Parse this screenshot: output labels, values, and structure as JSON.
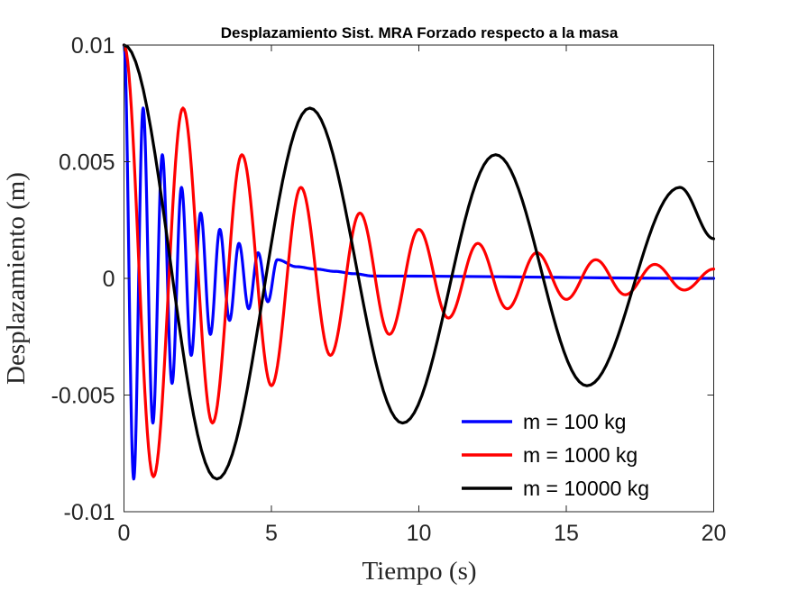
{
  "chart_data": {
    "type": "line",
    "title": "Desplazamiento Sist. MRA Forzado respecto a la masa",
    "xlabel": "Tiempo (s)",
    "ylabel": "Desplazamiento (m)",
    "xlim": [
      0,
      20
    ],
    "ylim": [
      -0.01,
      0.01
    ],
    "xticks": [
      0,
      5,
      10,
      15,
      20
    ],
    "xtick_labels": [
      "0",
      "5",
      "10",
      "15",
      "20"
    ],
    "yticks": [
      -0.01,
      -0.005,
      0,
      0.005,
      0.01
    ],
    "ytick_labels": [
      "-0.01",
      "-0.005",
      "0",
      "0.005",
      "0.01"
    ],
    "grid": false,
    "legend_position": "bottom-right",
    "series": [
      {
        "name": "m = 100 kg",
        "color": "#0000ff",
        "peaks": [
          {
            "x": 0.0,
            "y": 0.01
          },
          {
            "x": 0.33,
            "y": -0.0086
          },
          {
            "x": 0.65,
            "y": 0.0073
          },
          {
            "x": 0.98,
            "y": -0.0062
          },
          {
            "x": 1.3,
            "y": 0.0053
          },
          {
            "x": 1.63,
            "y": -0.0045
          },
          {
            "x": 1.95,
            "y": 0.0039
          },
          {
            "x": 2.28,
            "y": -0.0033
          },
          {
            "x": 2.6,
            "y": 0.0028
          },
          {
            "x": 2.93,
            "y": -0.0024
          },
          {
            "x": 3.25,
            "y": 0.0021
          },
          {
            "x": 3.58,
            "y": -0.0018
          },
          {
            "x": 3.9,
            "y": 0.0015
          },
          {
            "x": 4.23,
            "y": -0.0013
          },
          {
            "x": 4.55,
            "y": 0.0011
          },
          {
            "x": 4.88,
            "y": -0.001
          },
          {
            "x": 5.2,
            "y": 0.0008
          },
          {
            "x": 5.85,
            "y": 0.0005
          },
          {
            "x": 6.5,
            "y": 0.0004
          },
          {
            "x": 7.15,
            "y": 0.0003
          },
          {
            "x": 7.8,
            "y": 0.0002
          },
          {
            "x": 8.45,
            "y": 0.0001
          },
          {
            "x": 20.0,
            "y": 0.0
          }
        ]
      },
      {
        "name": "m = 1000 kg",
        "color": "#ff0000",
        "peaks": [
          {
            "x": 0.0,
            "y": 0.01
          },
          {
            "x": 1.0,
            "y": -0.0085
          },
          {
            "x": 2.0,
            "y": 0.0073
          },
          {
            "x": 3.0,
            "y": -0.0062
          },
          {
            "x": 4.0,
            "y": 0.0053
          },
          {
            "x": 5.0,
            "y": -0.0046
          },
          {
            "x": 6.0,
            "y": 0.0039
          },
          {
            "x": 7.0,
            "y": -0.0033
          },
          {
            "x": 8.0,
            "y": 0.0028
          },
          {
            "x": 9.0,
            "y": -0.0024
          },
          {
            "x": 10.0,
            "y": 0.0021
          },
          {
            "x": 11.0,
            "y": -0.0017
          },
          {
            "x": 12.0,
            "y": 0.0015
          },
          {
            "x": 13.0,
            "y": -0.0013
          },
          {
            "x": 14.0,
            "y": 0.0011
          },
          {
            "x": 15.0,
            "y": -0.0009
          },
          {
            "x": 16.0,
            "y": 0.0008
          },
          {
            "x": 17.0,
            "y": -0.0007
          },
          {
            "x": 18.0,
            "y": 0.0006
          },
          {
            "x": 19.0,
            "y": -0.0005
          },
          {
            "x": 20.0,
            "y": 0.0004
          }
        ]
      },
      {
        "name": "m = 10000 kg",
        "color": "#000000",
        "peaks": [
          {
            "x": 0.0,
            "y": 0.01
          },
          {
            "x": 3.15,
            "y": -0.0086
          },
          {
            "x": 6.3,
            "y": 0.0073
          },
          {
            "x": 9.45,
            "y": -0.0062
          },
          {
            "x": 12.6,
            "y": 0.0053
          },
          {
            "x": 15.7,
            "y": -0.0046
          },
          {
            "x": 18.85,
            "y": 0.0039
          },
          {
            "x": 20.0,
            "y": 0.0017
          }
        ]
      }
    ]
  }
}
